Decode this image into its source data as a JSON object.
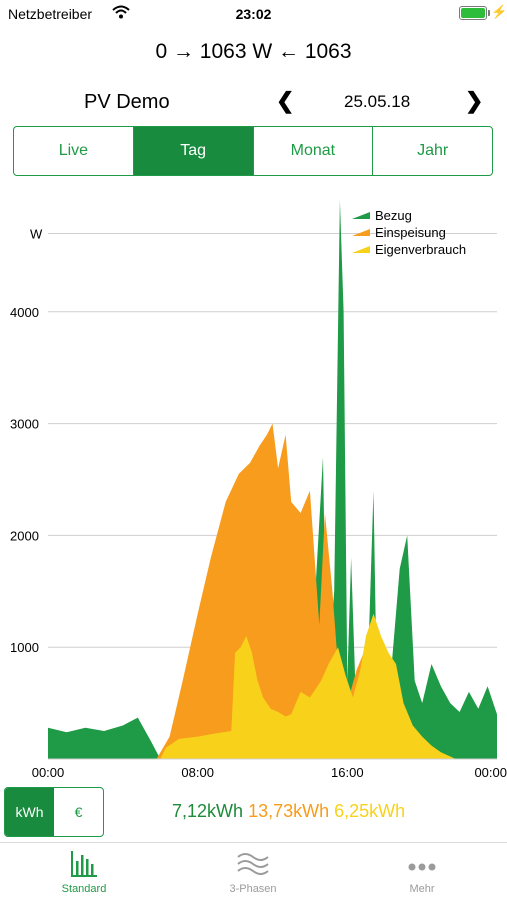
{
  "status": {
    "carrier": "Netzbetreiber",
    "time": "23:02"
  },
  "header": {
    "power": "0 → 1063 W ← 1063"
  },
  "nav": {
    "title": "PV Demo",
    "date": "25.05.18",
    "prev_icon": "chevron-left-icon",
    "next_icon": "chevron-right-icon"
  },
  "segments": [
    {
      "label": "Live",
      "active": false
    },
    {
      "label": "Tag",
      "active": true
    },
    {
      "label": "Monat",
      "active": false
    },
    {
      "label": "Jahr",
      "active": false
    }
  ],
  "chart_data": {
    "type": "area",
    "unit": "W",
    "x_ticks": [
      "00:00",
      "08:00",
      "16:00",
      "00:00"
    ],
    "x_range": [
      0,
      24
    ],
    "ylim": [
      0,
      5000
    ],
    "y_ticks": [
      1000,
      2000,
      3000,
      4000
    ],
    "top_label": "W",
    "legend": "top-right",
    "grid": true,
    "series": [
      {
        "name": "Bezug",
        "color": "#1f9a46",
        "points": [
          [
            0,
            280
          ],
          [
            1,
            240
          ],
          [
            2,
            280
          ],
          [
            3,
            250
          ],
          [
            4,
            300
          ],
          [
            4.8,
            370
          ],
          [
            5.5,
            160
          ],
          [
            6,
            0
          ],
          [
            13,
            0
          ],
          [
            13.6,
            300
          ],
          [
            14,
            650
          ],
          [
            14.7,
            2700
          ],
          [
            14.9,
            600
          ],
          [
            15.3,
            1500
          ],
          [
            15.6,
            5000
          ],
          [
            15.8,
            4000
          ],
          [
            16,
            700
          ],
          [
            16.2,
            1800
          ],
          [
            16.5,
            300
          ],
          [
            17,
            280
          ],
          [
            17.4,
            2400
          ],
          [
            17.6,
            350
          ],
          [
            18.2,
            500
          ],
          [
            18.8,
            1700
          ],
          [
            19.2,
            2000
          ],
          [
            19.6,
            700
          ],
          [
            20,
            500
          ],
          [
            20.5,
            850
          ],
          [
            21,
            650
          ],
          [
            21.5,
            500
          ],
          [
            22,
            420
          ],
          [
            22.5,
            600
          ],
          [
            23,
            450
          ],
          [
            23.5,
            650
          ],
          [
            24,
            400
          ]
        ]
      },
      {
        "name": "Einspeisung",
        "color": "#f79c1c",
        "points": [
          [
            5.8,
            0
          ],
          [
            6.5,
            200
          ],
          [
            7.2,
            700
          ],
          [
            8,
            1300
          ],
          [
            8.7,
            1800
          ],
          [
            9.5,
            2300
          ],
          [
            10.2,
            2550
          ],
          [
            10.8,
            2650
          ],
          [
            11.3,
            2800
          ],
          [
            11.7,
            2900
          ],
          [
            12,
            3000
          ],
          [
            12.3,
            2600
          ],
          [
            12.7,
            2900
          ],
          [
            13,
            2300
          ],
          [
            13.5,
            2200
          ],
          [
            14,
            2400
          ],
          [
            14.5,
            1200
          ],
          [
            14.8,
            2200
          ],
          [
            15.2,
            1500
          ],
          [
            15.6,
            600
          ],
          [
            16,
            500
          ],
          [
            16.5,
            800
          ],
          [
            17,
            1000
          ],
          [
            17.4,
            1200
          ],
          [
            17.8,
            900
          ],
          [
            18.2,
            700
          ],
          [
            18.8,
            300
          ],
          [
            19.3,
            150
          ],
          [
            19.6,
            0
          ]
        ]
      },
      {
        "name": "Eigenverbrauch",
        "color": "#f8d21a",
        "points": [
          [
            6,
            0
          ],
          [
            6.3,
            100
          ],
          [
            7,
            180
          ],
          [
            8,
            200
          ],
          [
            9,
            230
          ],
          [
            9.8,
            250
          ],
          [
            10,
            950
          ],
          [
            10.3,
            1000
          ],
          [
            10.6,
            1100
          ],
          [
            10.9,
            950
          ],
          [
            11.2,
            700
          ],
          [
            11.5,
            550
          ],
          [
            11.9,
            450
          ],
          [
            12.3,
            420
          ],
          [
            12.7,
            380
          ],
          [
            13,
            400
          ],
          [
            13.5,
            600
          ],
          [
            14,
            550
          ],
          [
            14.6,
            700
          ],
          [
            15,
            850
          ],
          [
            15.5,
            1000
          ],
          [
            15.9,
            750
          ],
          [
            16.3,
            550
          ],
          [
            16.7,
            800
          ],
          [
            17,
            1100
          ],
          [
            17.4,
            1300
          ],
          [
            17.8,
            1100
          ],
          [
            18.2,
            950
          ],
          [
            18.6,
            850
          ],
          [
            19,
            500
          ],
          [
            19.5,
            300
          ],
          [
            20,
            200
          ],
          [
            20.5,
            120
          ],
          [
            21,
            60
          ],
          [
            21.8,
            0
          ]
        ]
      }
    ]
  },
  "units": [
    {
      "label": "kWh",
      "active": true
    },
    {
      "label": "€",
      "active": false
    }
  ],
  "totals": {
    "bezug": "7,12kWh",
    "einspeisung": "13,73kWh",
    "eigenverbrauch": "6,25kWh"
  },
  "tabbar": [
    {
      "label": "Standard",
      "icon": "bar-chart-icon",
      "active": true
    },
    {
      "label": "3-Phasen",
      "icon": "waves-icon",
      "active": false
    },
    {
      "label": "Mehr",
      "icon": "more-dots-icon",
      "active": false
    }
  ],
  "colors": {
    "accent": "#1f9a46",
    "bezug": "#1f9a46",
    "einspeisung": "#f79c1c",
    "eigenverbrauch": "#f8d21a"
  }
}
